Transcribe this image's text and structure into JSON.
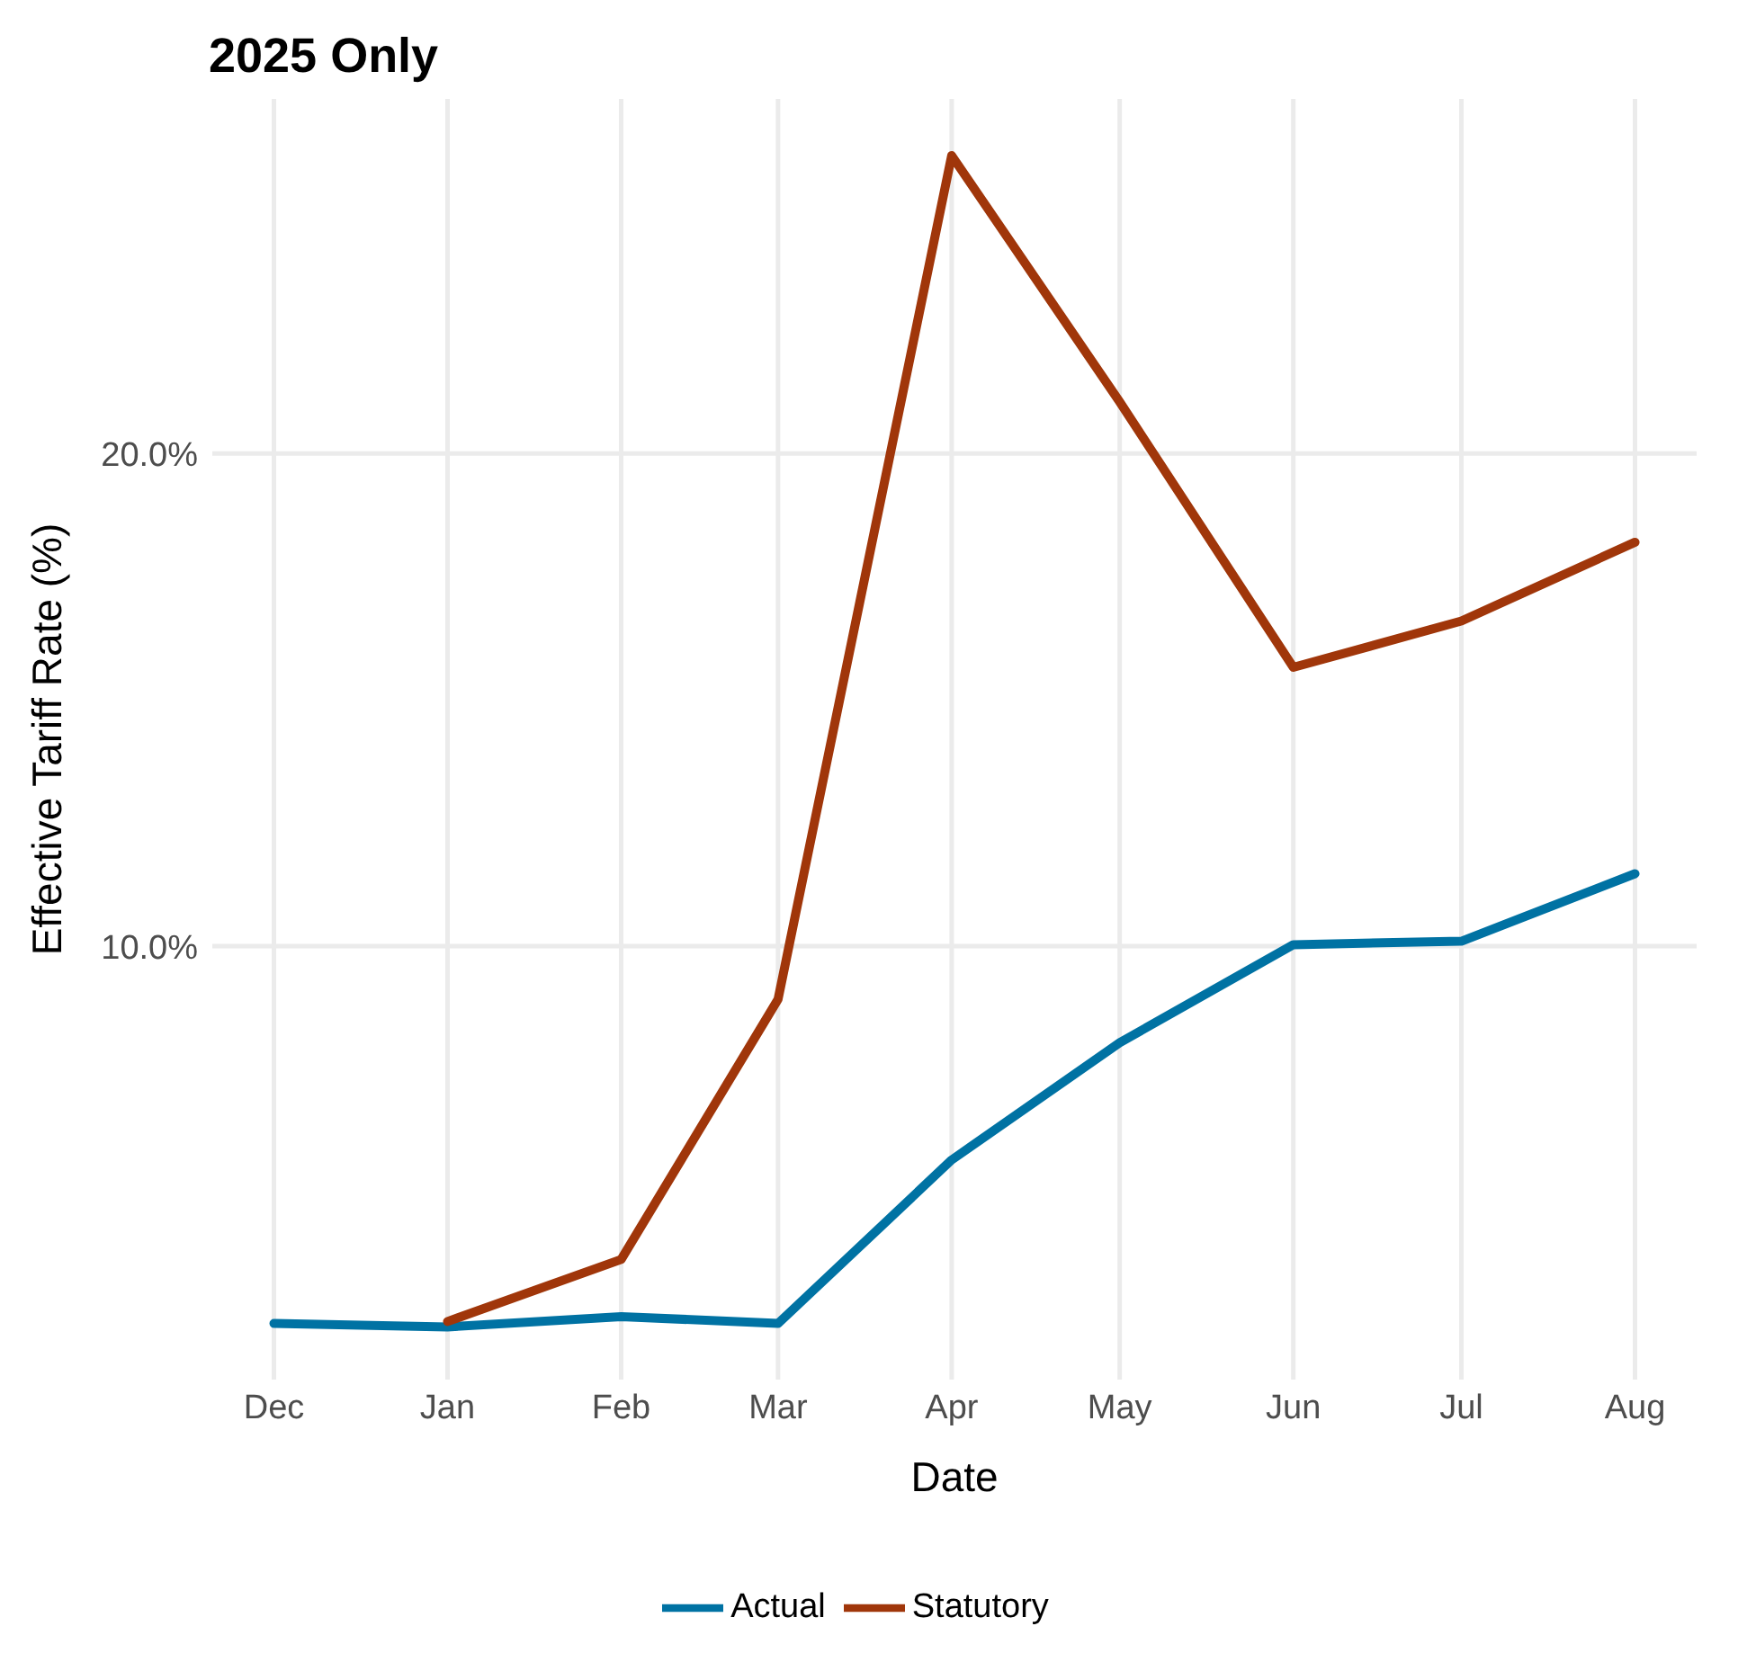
{
  "chart_data": {
    "type": "line",
    "title": "2025 Only",
    "xlabel": "Date",
    "ylabel": "Effective Tariff Rate (%)",
    "x": [
      "2024-12",
      "2025-01",
      "2025-02",
      "2025-03",
      "2025-04",
      "2025-05",
      "2025-06",
      "2025-07",
      "2025-08"
    ],
    "series": [
      {
        "name": "Actual",
        "color": "#0072a3",
        "values": [
          2.34,
          2.27,
          2.48,
          2.34,
          5.66,
          8.04,
          10.03,
          10.1,
          11.47
        ]
      },
      {
        "name": "Statutory",
        "color": "#a0360a",
        "values": [
          null,
          2.38,
          3.64,
          8.92,
          26.05,
          21.05,
          15.66,
          16.6,
          18.2
        ]
      }
    ],
    "xlim": [
      "2024-11-20",
      "2025-08-12"
    ],
    "xticks": [
      {
        "value": "2024-12",
        "label": "Dec"
      },
      {
        "value": "2025-01",
        "label": "Jan"
      },
      {
        "value": "2025-02",
        "label": "Feb"
      },
      {
        "value": "2025-03",
        "label": "Mar"
      },
      {
        "value": "2025-04",
        "label": "Apr"
      },
      {
        "value": "2025-05",
        "label": "May"
      },
      {
        "value": "2025-06",
        "label": "Jun"
      },
      {
        "value": "2025-07",
        "label": "Jul"
      },
      {
        "value": "2025-08",
        "label": "Aug"
      }
    ],
    "ylim": [
      1.2,
      27.2
    ],
    "yticks": [
      {
        "value": 10,
        "label": "10.0%"
      },
      {
        "value": 20,
        "label": "20.0%"
      }
    ],
    "grid": true,
    "legend": "bottom",
    "marker": "none",
    "line_style": "solid"
  }
}
